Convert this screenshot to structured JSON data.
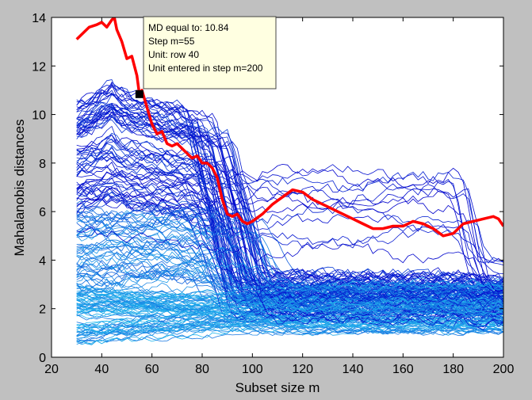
{
  "window": {
    "background": "#c0c0c0"
  },
  "chart_data": {
    "type": "line",
    "title": "",
    "xlabel": "Subset size m",
    "ylabel": "Mahalanobis distances",
    "xlim": [
      20,
      200
    ],
    "ylim": [
      0,
      14
    ],
    "xticks": [
      20,
      40,
      60,
      80,
      100,
      120,
      140,
      160,
      180,
      200
    ],
    "yticks": [
      0,
      2,
      4,
      6,
      8,
      10,
      12,
      14
    ],
    "grid": false,
    "legend": "none",
    "background_series": {
      "description_units": "one trajectory per unit, m from 30 to 200",
      "count": 200,
      "color_dark": "#0000cc",
      "color_light": "#22bbee",
      "group_envelopes": [
        {
          "tier": "high",
          "y_at_m30": [
            6.0,
            10.5
          ],
          "peak_m": 45,
          "drop_m": [
            85,
            105
          ],
          "y_after": [
            1.5,
            3.5
          ]
        },
        {
          "tier": "late-outliers",
          "y_at_m30": [
            5.0,
            9.0
          ],
          "y_plateau": [
            4.2,
            8.0
          ],
          "drop_m": 182,
          "y_after": [
            2.5,
            4.0
          ]
        },
        {
          "tier": "mid",
          "y_at_m30": [
            3.0,
            6.0
          ],
          "y_after": [
            1.8,
            3.0
          ]
        },
        {
          "tier": "low",
          "y_at_m30": [
            0.5,
            3.0
          ],
          "y_after": [
            1.0,
            3.0
          ]
        }
      ]
    },
    "highlight_series": {
      "name": "row 40",
      "color": "#ff0000",
      "x": [
        30,
        33,
        35,
        38,
        40,
        42,
        44,
        45,
        46,
        48,
        50,
        52,
        54,
        55,
        56,
        58,
        60,
        62,
        64,
        66,
        68,
        70,
        72,
        74,
        76,
        78,
        80,
        82,
        84,
        86,
        88,
        90,
        92,
        94,
        96,
        98,
        100,
        104,
        108,
        112,
        116,
        120,
        124,
        128,
        132,
        136,
        140,
        144,
        148,
        152,
        156,
        160,
        164,
        168,
        172,
        176,
        180,
        182,
        184,
        188,
        192,
        196,
        198,
        200
      ],
      "y": [
        13.1,
        13.4,
        13.6,
        13.7,
        13.8,
        13.6,
        13.9,
        14.0,
        13.5,
        13.0,
        12.3,
        12.4,
        11.6,
        10.84,
        11.0,
        10.3,
        9.6,
        9.2,
        9.3,
        8.8,
        8.7,
        8.8,
        8.6,
        8.4,
        8.2,
        8.3,
        8.0,
        8.0,
        7.8,
        7.4,
        6.5,
        5.9,
        5.8,
        5.9,
        5.6,
        5.5,
        5.6,
        5.9,
        6.3,
        6.6,
        6.9,
        6.8,
        6.5,
        6.3,
        6.1,
        5.9,
        5.7,
        5.5,
        5.3,
        5.3,
        5.4,
        5.4,
        5.6,
        5.5,
        5.3,
        5.0,
        5.1,
        5.3,
        5.5,
        5.6,
        5.7,
        5.8,
        5.7,
        5.4
      ]
    },
    "marker": {
      "x": 55,
      "y": 10.84
    },
    "tooltip": {
      "lines": [
        "MD equal to: 10.84",
        "Step m=55",
        "Unit:  row 40",
        "Unit entered in step m=200"
      ],
      "background": "#ffffe1"
    }
  }
}
